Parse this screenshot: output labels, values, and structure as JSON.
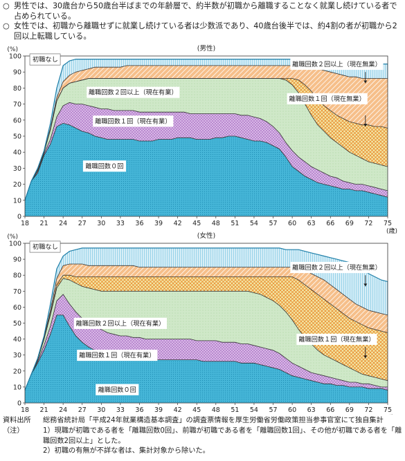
{
  "bullets": [
    {
      "marker": "○",
      "text": "男性では、30歳台から50歳台半ばまでの年齢層で、約半数が初職から離職することなく就業し続けている者で占められている。"
    },
    {
      "marker": "○",
      "text": "女性では、初職から離職せずに就業し続けている者は少数派であり、40歳台後半では、約4割の者が初職から2回以上転職している。"
    }
  ],
  "colors": {
    "none": "#d7eef7",
    "none_line": "#39a9d6",
    "twoplus": "#f6bf8a",
    "twoplus_hatch": "#ffffff",
    "one": "#f3e9a8",
    "one_hatch": "#e98a2c",
    "two_emp": "#cfe8c8",
    "one_emp": "#d8b8e6",
    "zero": "#46b6d8",
    "zero_dot": "#1f8eb5"
  },
  "chart_data": [
    {
      "type": "area",
      "title": "(男性)",
      "ylabel": "(%)",
      "xlabel": "(歳)",
      "ylim": [
        0,
        100
      ],
      "yticks": [
        0,
        10,
        20,
        30,
        40,
        50,
        60,
        70,
        80,
        90,
        100
      ],
      "xticks": [
        18,
        21,
        24,
        27,
        30,
        33,
        36,
        39,
        42,
        45,
        48,
        51,
        54,
        57,
        60,
        63,
        66,
        69,
        72,
        75
      ],
      "x": [
        18,
        19,
        20,
        21,
        22,
        23,
        24,
        25,
        26,
        27,
        28,
        29,
        30,
        31,
        32,
        33,
        34,
        35,
        36,
        37,
        38,
        39,
        40,
        41,
        42,
        43,
        44,
        45,
        46,
        47,
        48,
        49,
        50,
        51,
        52,
        53,
        54,
        55,
        56,
        57,
        58,
        59,
        60,
        61,
        62,
        63,
        64,
        65,
        66,
        67,
        68,
        69,
        70,
        71,
        72,
        73,
        74,
        75
      ],
      "series": [
        {
          "name": "離職回数0回",
          "values": [
            10,
            22,
            27,
            38,
            45,
            56,
            58,
            57,
            55,
            53,
            52,
            50,
            49,
            48,
            48,
            48,
            48,
            48,
            47,
            47,
            47,
            48,
            48,
            48,
            49,
            49,
            49,
            48,
            48,
            48,
            49,
            49,
            50,
            50,
            49,
            48,
            47,
            47,
            46,
            44,
            42,
            37,
            31,
            28,
            25,
            23,
            21,
            20,
            19,
            18,
            17,
            17,
            16,
            16,
            15,
            14,
            13,
            12
          ]
        },
        {
          "name": "離職回数1回（現在有業）",
          "values": [
            10,
            22,
            28,
            39,
            48,
            62,
            69,
            71,
            70,
            70,
            69,
            68,
            67,
            67,
            66,
            66,
            66,
            66,
            65,
            65,
            65,
            65,
            65,
            65,
            65,
            65,
            64,
            64,
            64,
            64,
            64,
            64,
            64,
            64,
            63,
            63,
            62,
            61,
            59,
            56,
            52,
            46,
            41,
            37,
            34,
            31,
            29,
            27,
            25,
            24,
            22,
            21,
            20,
            20,
            19,
            18,
            17,
            16
          ]
        },
        {
          "name": "離職回数2回以上（現在有業）",
          "values": [
            10,
            22,
            29,
            40,
            54,
            72,
            80,
            83,
            84,
            85,
            86,
            86,
            86,
            86,
            86,
            86,
            86,
            86,
            86,
            86,
            86,
            86,
            86,
            86,
            86,
            86,
            86,
            86,
            86,
            86,
            86,
            86,
            86,
            86,
            86,
            86,
            86,
            86,
            86,
            86,
            86,
            85,
            82,
            77,
            70,
            63,
            57,
            53,
            49,
            46,
            43,
            40,
            38,
            36,
            34,
            33,
            32,
            31
          ]
        },
        {
          "name": "離職回数1回（現在無業）",
          "values": [
            10,
            22,
            29,
            40,
            54,
            72,
            80,
            83,
            84,
            85,
            86,
            86,
            86,
            86,
            86,
            86,
            86,
            86,
            86,
            86,
            86,
            86,
            86,
            86,
            86,
            86,
            86,
            86,
            86,
            86,
            86,
            86,
            86,
            86,
            86,
            86,
            86,
            86,
            86,
            86,
            86,
            86,
            86,
            85,
            82,
            78,
            73,
            69,
            66,
            63,
            61,
            59,
            58,
            57,
            57,
            56,
            56,
            55
          ]
        },
        {
          "name": "離職回数2回以上（現在無業）",
          "values": [
            10,
            22,
            29,
            40,
            55,
            74,
            84,
            88,
            90,
            91,
            92,
            93,
            93,
            93,
            93,
            93,
            94,
            94,
            94,
            94,
            94,
            94,
            94,
            94,
            94,
            94,
            94,
            94,
            94,
            94,
            94,
            94,
            94,
            94,
            94,
            94,
            94,
            94,
            94,
            94,
            94,
            94,
            94,
            94,
            94,
            93,
            92,
            91,
            90,
            89,
            88,
            87,
            87,
            86,
            86,
            86,
            86,
            86
          ]
        },
        {
          "name": "初職なし",
          "values": [
            10,
            22,
            30,
            41,
            58,
            80,
            94,
            97,
            98,
            98,
            98,
            98,
            98,
            98,
            98,
            98,
            98,
            98,
            98,
            98,
            98,
            98,
            98,
            98,
            98,
            98,
            98,
            98,
            98,
            98,
            98,
            98,
            98,
            98,
            98,
            98,
            98,
            98,
            98,
            98,
            98,
            98,
            98,
            98,
            97,
            97,
            97,
            97,
            96,
            96,
            96,
            96,
            96,
            96,
            95,
            95,
            95,
            95
          ]
        }
      ],
      "labels": {
        "none": "初職なし",
        "zero": "離職回数０回",
        "one_emp": "離職回数１回（現在有業）",
        "two_emp": "離職回数２回以上（現在有業）",
        "two_unemp": "離職回数２回以上（現在無業）",
        "one_unemp": "離職回数１回（現在無業）"
      }
    },
    {
      "type": "area",
      "title": "(女性)",
      "ylabel": "(%)",
      "xlabel": "(歳)",
      "ylim": [
        0,
        100
      ],
      "yticks": [
        0,
        10,
        20,
        30,
        40,
        50,
        60,
        70,
        80,
        90,
        100
      ],
      "xticks": [
        18,
        21,
        24,
        27,
        30,
        33,
        36,
        39,
        42,
        45,
        48,
        51,
        54,
        57,
        60,
        63,
        66,
        69,
        72,
        75
      ],
      "x": [
        18,
        19,
        20,
        21,
        22,
        23,
        24,
        25,
        26,
        27,
        28,
        29,
        30,
        31,
        32,
        33,
        34,
        35,
        36,
        37,
        38,
        39,
        40,
        41,
        42,
        43,
        44,
        45,
        46,
        47,
        48,
        49,
        50,
        51,
        52,
        53,
        54,
        55,
        56,
        57,
        58,
        59,
        60,
        61,
        62,
        63,
        64,
        65,
        66,
        67,
        68,
        69,
        70,
        71,
        72,
        73,
        74,
        75
      ],
      "series": [
        {
          "name": "離職回数0回",
          "values": [
            8,
            18,
            25,
            33,
            43,
            55,
            55,
            48,
            42,
            38,
            35,
            33,
            32,
            31,
            30,
            30,
            29,
            28,
            28,
            28,
            27,
            27,
            27,
            27,
            27,
            27,
            27,
            27,
            26,
            26,
            26,
            26,
            26,
            26,
            25,
            25,
            25,
            24,
            23,
            22,
            21,
            19,
            17,
            16,
            15,
            14,
            13,
            12,
            12,
            11,
            11,
            10,
            10,
            10,
            9,
            9,
            9,
            8
          ]
        },
        {
          "name": "離職回数1回（現在有業）",
          "values": [
            8,
            18,
            26,
            36,
            48,
            64,
            68,
            62,
            57,
            53,
            50,
            48,
            46,
            44,
            43,
            42,
            42,
            41,
            41,
            40,
            40,
            40,
            40,
            40,
            40,
            40,
            40,
            39,
            39,
            39,
            39,
            38,
            38,
            38,
            37,
            37,
            36,
            35,
            34,
            33,
            31,
            28,
            25,
            23,
            21,
            19,
            18,
            17,
            16,
            15,
            14,
            13,
            13,
            12,
            12,
            11,
            10,
            10
          ]
        },
        {
          "name": "離職回数2回以上（現在有業）",
          "values": [
            8,
            18,
            27,
            40,
            55,
            72,
            78,
            77,
            75,
            73,
            72,
            71,
            70,
            70,
            70,
            70,
            70,
            70,
            70,
            70,
            70,
            70,
            70,
            70,
            70,
            70,
            70,
            70,
            70,
            70,
            70,
            70,
            70,
            70,
            70,
            70,
            69,
            68,
            66,
            64,
            61,
            57,
            52,
            46,
            41,
            37,
            33,
            30,
            28,
            26,
            24,
            22,
            20,
            18,
            17,
            16,
            15,
            14
          ]
        },
        {
          "name": "離職回数1回（現在無業）",
          "values": [
            8,
            18,
            27,
            40,
            56,
            74,
            80,
            80,
            79,
            79,
            79,
            79,
            79,
            79,
            79,
            79,
            79,
            79,
            79,
            79,
            79,
            79,
            79,
            79,
            79,
            79,
            79,
            79,
            79,
            79,
            79,
            79,
            79,
            79,
            79,
            79,
            79,
            79,
            79,
            79,
            79,
            79,
            79,
            77,
            74,
            71,
            68,
            65,
            62,
            59,
            56,
            53,
            51,
            49,
            47,
            46,
            45,
            44
          ]
        },
        {
          "name": "離職回数2回以上（現在無業）",
          "values": [
            8,
            18,
            27,
            41,
            58,
            78,
            86,
            87,
            87,
            87,
            86,
            86,
            86,
            86,
            86,
            86,
            86,
            86,
            85,
            85,
            85,
            85,
            85,
            85,
            85,
            85,
            85,
            85,
            85,
            85,
            85,
            85,
            85,
            85,
            85,
            85,
            85,
            85,
            85,
            85,
            85,
            85,
            85,
            84,
            83,
            81,
            79,
            77,
            74,
            71,
            68,
            65,
            62,
            60,
            58,
            57,
            56,
            55
          ]
        },
        {
          "name": "初職なし",
          "values": [
            8,
            18,
            28,
            42,
            62,
            84,
            92,
            95,
            96,
            97,
            97,
            97,
            97,
            97,
            97,
            97,
            97,
            97,
            97,
            97,
            97,
            97,
            97,
            97,
            97,
            97,
            97,
            97,
            97,
            97,
            97,
            97,
            97,
            97,
            97,
            97,
            97,
            97,
            97,
            97,
            97,
            96,
            96,
            96,
            95,
            94,
            93,
            92,
            91,
            90,
            89,
            88,
            86,
            84,
            81,
            79,
            77,
            76
          ]
        }
      ],
      "labels": {
        "none": "初職なし",
        "zero": "離職回数０回",
        "one_emp": "離職回数１回（現在有業）",
        "two_emp": "離職回数２回以上（現在有業）",
        "two_unemp": "離職回数２回以上（現在無業）",
        "one_unemp": "離職回数１回（現在無業）"
      }
    }
  ],
  "notes": [
    {
      "key": "資料出所",
      "text": "総務省統計局「平成24年就業構造基本調査」の調査票情報を厚生労働省労働政策担当参事官室にて独自集計"
    },
    {
      "key": "（注）",
      "text": "1）現職が初職である者を「離職回数0回」、前職が初職である者を「離職回数1回」、その他が初職である者を「離職回数2回以上」とした。"
    },
    {
      "key": "",
      "text": "2）初職の有無が不詳な者は、集計対象から除いた。"
    }
  ]
}
